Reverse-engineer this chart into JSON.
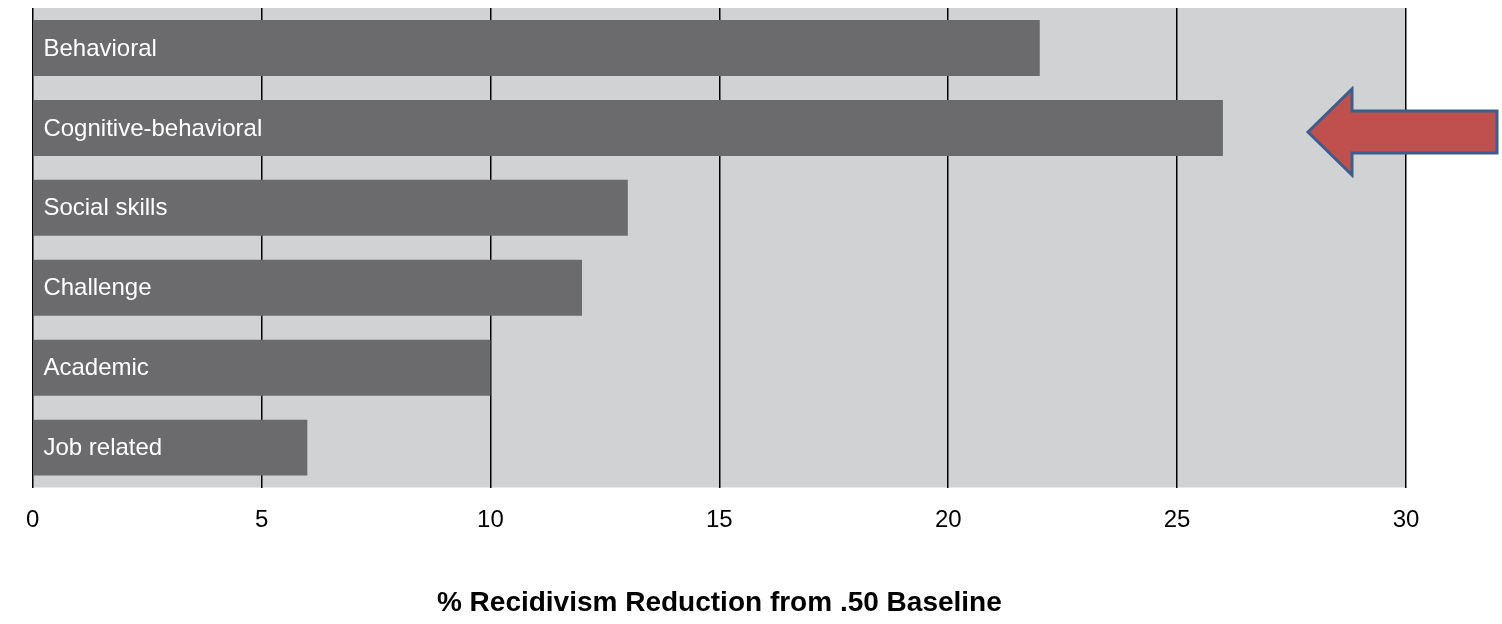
{
  "chart_data": {
    "type": "bar",
    "orientation": "horizontal",
    "xlabel": "% Recidivism Reduction from .50 Baseline",
    "categories": [
      "Behavioral",
      "Cognitive-behavioral",
      "Social skills",
      "Challenge",
      "Academic",
      "Job related"
    ],
    "values": [
      22,
      26,
      13,
      12,
      10,
      6
    ],
    "color": "#6b6b6d",
    "xlim": [
      0,
      30
    ],
    "xticks": [
      0,
      5,
      10,
      15,
      20,
      25,
      30
    ],
    "grid": "x",
    "legend": false
  }
}
